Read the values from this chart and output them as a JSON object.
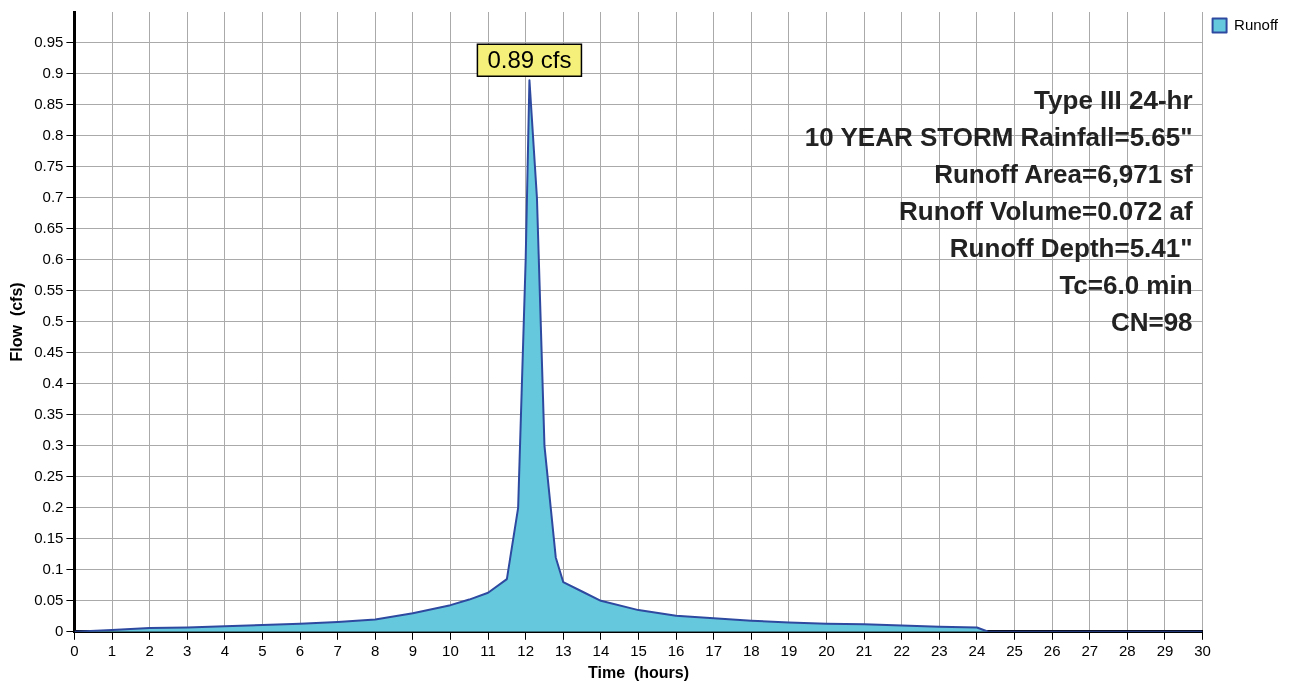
{
  "chart_data": {
    "type": "area",
    "xlabel": "Time  (hours)",
    "ylabel": "Flow  (cfs)",
    "x": [
      0,
      1,
      2,
      3,
      4,
      5,
      6,
      7,
      8,
      9,
      10,
      10.5,
      11,
      11.5,
      11.8,
      12,
      12.1,
      12.3,
      12.5,
      12.8,
      13,
      13.5,
      14,
      15,
      16,
      17,
      18,
      19,
      20,
      21,
      22,
      23,
      24,
      24.3,
      25,
      26,
      27,
      28,
      29,
      30
    ],
    "series": [
      {
        "name": "Runoff",
        "color": "#66c8dc",
        "values": [
          0,
          0.003,
          0.006,
          0.007,
          0.009,
          0.011,
          0.013,
          0.016,
          0.02,
          0.03,
          0.043,
          0.052,
          0.063,
          0.085,
          0.2,
          0.6,
          0.89,
          0.7,
          0.3,
          0.12,
          0.08,
          0.065,
          0.05,
          0.035,
          0.026,
          0.022,
          0.018,
          0.015,
          0.013,
          0.012,
          0.01,
          0.008,
          0.007,
          0,
          0,
          0,
          0,
          0,
          0,
          0
        ]
      }
    ],
    "xlim": [
      0,
      30
    ],
    "xticks": [
      0,
      1,
      2,
      3,
      4,
      5,
      6,
      7,
      8,
      9,
      10,
      11,
      12,
      13,
      14,
      15,
      16,
      17,
      18,
      19,
      20,
      21,
      22,
      23,
      24,
      25,
      26,
      27,
      28,
      29,
      30
    ],
    "ylim": [
      0,
      1
    ],
    "yticks": [
      0,
      0.05,
      0.1,
      0.15,
      0.2,
      0.25,
      0.3,
      0.35,
      0.4,
      0.45,
      0.5,
      0.55,
      0.6,
      0.65,
      0.7,
      0.75,
      0.8,
      0.85,
      0.9,
      0.95
    ],
    "grid": true,
    "legend": "top right",
    "line_style": "solid",
    "marker": "none",
    "annotations": [
      {
        "text": "0.89 cfs",
        "x": 12.1,
        "y": 0.89
      },
      "Type III 24-hr",
      "10 YEAR STORM Rainfall=5.65\"",
      "Runoff Area=6,971 sf",
      "Runoff Volume=0.072 af",
      "Runoff Depth=5.41\"",
      "Tc=6.0 min",
      "CN=98"
    ]
  }
}
